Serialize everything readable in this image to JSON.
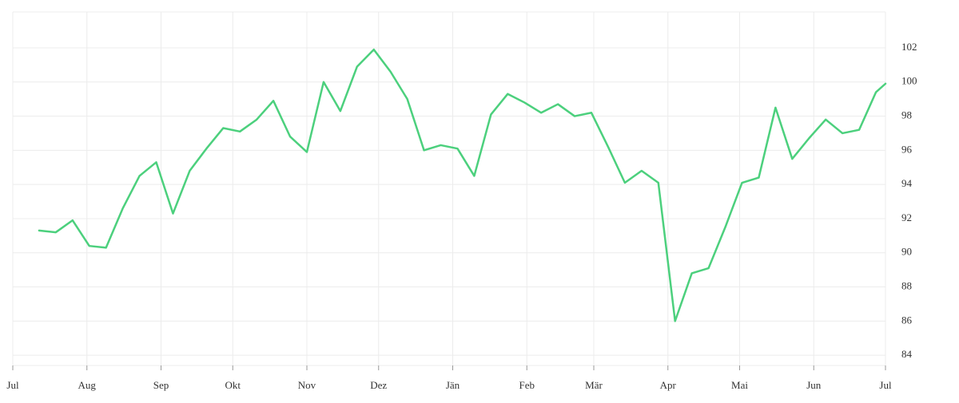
{
  "chart_data": {
    "type": "line",
    "x": [
      11,
      18,
      25,
      32,
      39,
      46,
      53,
      60,
      67,
      74,
      81,
      88,
      95,
      102,
      109,
      116,
      123,
      130,
      137,
      144,
      151,
      158,
      165,
      172,
      179,
      186,
      193,
      200,
      207,
      214,
      221,
      228,
      235,
      242,
      249,
      256,
      263,
      270,
      277,
      284,
      291,
      298,
      305,
      312,
      319,
      326,
      333,
      340,
      347,
      354,
      361,
      365
    ],
    "series": [
      {
        "color": "#4cd07d",
        "values": [
          91.3,
          91.2,
          91.9,
          90.4,
          90.3,
          92.6,
          94.5,
          95.3,
          92.3,
          94.8,
          96.1,
          97.3,
          97.1,
          97.8,
          98.9,
          96.8,
          95.9,
          100.0,
          98.3,
          100.9,
          101.9,
          100.6,
          99.0,
          96.0,
          96.3,
          96.1,
          94.5,
          98.1,
          99.3,
          98.8,
          98.2,
          98.7,
          98.0,
          98.2,
          96.2,
          94.1,
          94.8,
          94.1,
          86.0,
          88.8,
          89.1,
          91.5,
          94.1,
          94.4,
          98.5,
          95.5,
          96.7,
          97.8,
          97.0,
          97.2,
          99.4,
          99.9
        ]
      }
    ],
    "xlim": [
      0,
      365
    ],
    "xticks": [
      {
        "value": 0,
        "label": "Jul"
      },
      {
        "value": 31,
        "label": "Aug"
      },
      {
        "value": 62,
        "label": "Sep"
      },
      {
        "value": 92,
        "label": "Okt"
      },
      {
        "value": 123,
        "label": "Nov"
      },
      {
        "value": 153,
        "label": "Dez"
      },
      {
        "value": 184,
        "label": "Jän"
      },
      {
        "value": 215,
        "label": "Feb"
      },
      {
        "value": 243,
        "label": "Mär"
      },
      {
        "value": 274,
        "label": "Apr"
      },
      {
        "value": 304,
        "label": "Mai"
      },
      {
        "value": 335,
        "label": "Jun"
      },
      {
        "value": 365,
        "label": "Jul"
      }
    ],
    "ylim": [
      83.4,
      104.1
    ],
    "yticks": [
      84,
      86,
      88,
      90,
      92,
      94,
      96,
      98,
      100,
      102
    ],
    "grid": true
  }
}
